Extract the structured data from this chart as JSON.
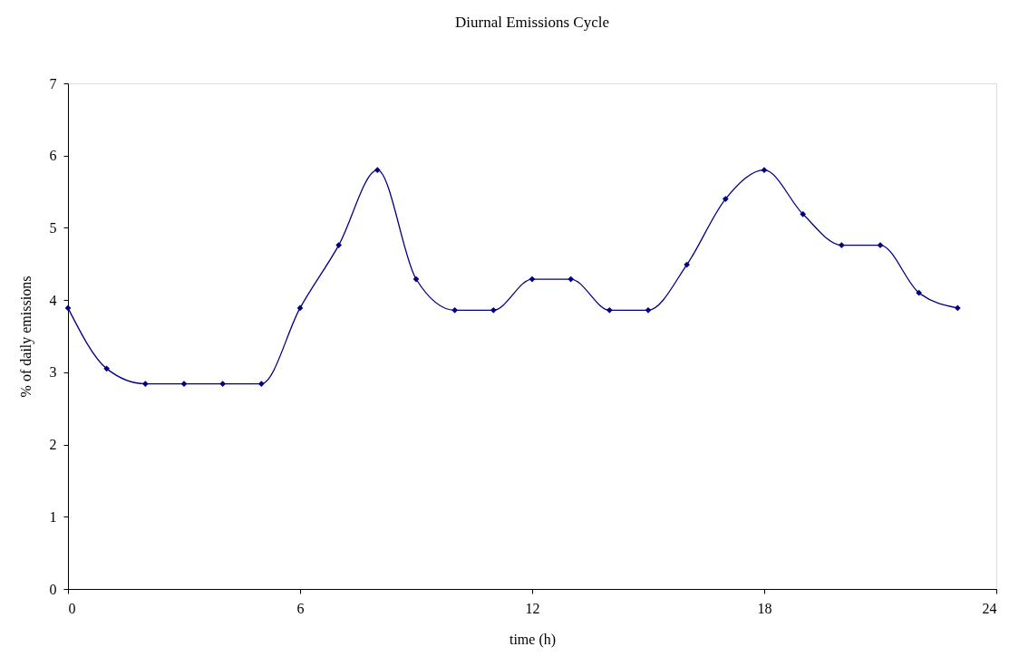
{
  "chart_data": {
    "type": "line",
    "title": "Diurnal Emissions Cycle",
    "xlabel": "time (h)",
    "ylabel": "% of daily emissions",
    "x": [
      0,
      1,
      2,
      3,
      4,
      5,
      6,
      7,
      8,
      9,
      10,
      11,
      12,
      13,
      14,
      15,
      16,
      17,
      18,
      19,
      20,
      21,
      22,
      23
    ],
    "series": [
      {
        "color": "#000080",
        "values": [
          3.89,
          3.05,
          2.84,
          2.84,
          2.84,
          2.84,
          3.89,
          4.76,
          5.8,
          4.29,
          3.86,
          3.86,
          4.29,
          4.29,
          3.86,
          3.86,
          4.49,
          5.4,
          5.8,
          5.19,
          4.76,
          4.76,
          4.1,
          3.89
        ]
      }
    ],
    "xlim": [
      0,
      24
    ],
    "xticks": [
      0,
      6,
      12,
      18,
      24
    ],
    "ylim": [
      0,
      7
    ],
    "yticks": [
      0,
      1,
      2,
      3,
      4,
      5,
      6,
      7
    ],
    "grid": false,
    "marker": "diamond",
    "line_style": "solid"
  }
}
